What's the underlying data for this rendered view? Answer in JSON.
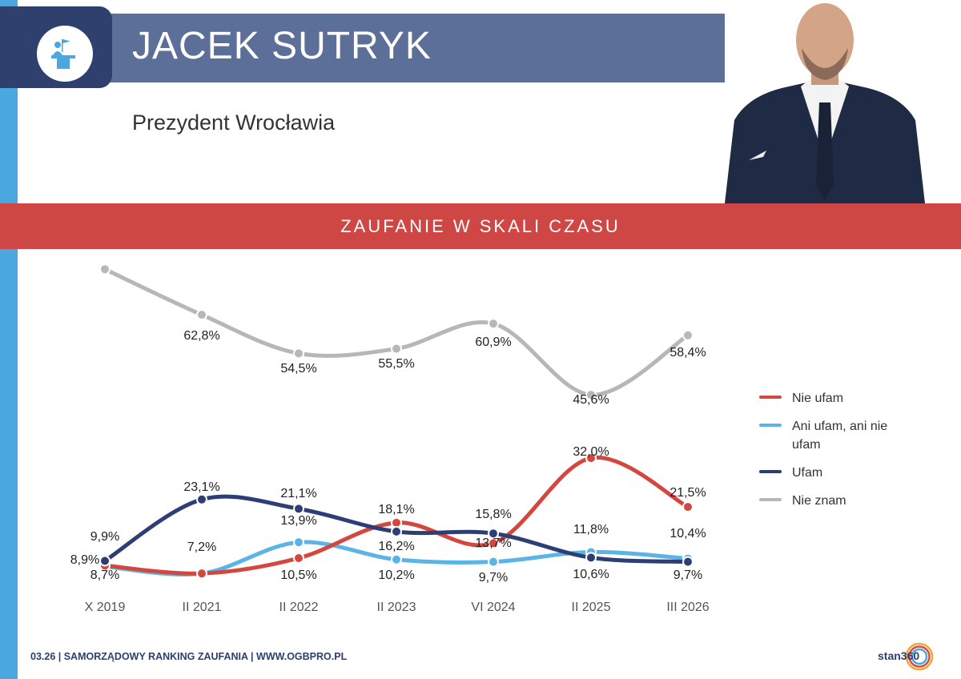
{
  "header": {
    "name": "JACEK SUTRYK",
    "role": "Prezydent Wrocławia",
    "icon": "speaker-podium-icon"
  },
  "section": {
    "title": "ZAUFANIE W SKALI CZASU"
  },
  "footer": {
    "text": "03.26 | SAMORZĄDOWY RANKING ZAUFANIA | WWW.OGBPRO.PL",
    "logo": "stan360"
  },
  "colors": {
    "header_bar": "#5c6f99",
    "icon_box": "#2f3f6e",
    "accent_blue": "#4ba7df",
    "section_red": "#cf4744"
  },
  "chart_data": {
    "type": "line",
    "categories": [
      "X 2019",
      "II 2021",
      "II 2022",
      "II 2023",
      "VI 2024",
      "II 2025",
      "III 2026"
    ],
    "ylim": [
      0,
      70
    ],
    "grid": false,
    "legend": "right",
    "series": [
      {
        "name": "Nie ufam",
        "color": "#d4473f",
        "values": [
          8.9,
          7.2,
          10.5,
          18.1,
          13.7,
          32.0,
          21.5
        ],
        "labels": [
          "8,9%",
          "",
          "10,5%",
          "18,1%",
          "13,7%",
          "32,0%",
          "21,5%"
        ]
      },
      {
        "name": "Ani ufam, ani nie ufam",
        "color": "#5ab4e5",
        "values": [
          8.7,
          7.2,
          13.9,
          10.2,
          9.7,
          11.8,
          10.4
        ],
        "labels": [
          "8,7%",
          "7,2%",
          "13,9%",
          "10,2%",
          "9,7%",
          "11,8%",
          "10,4%"
        ]
      },
      {
        "name": "Ufam",
        "color": "#2c3e73",
        "values": [
          9.9,
          23.1,
          21.1,
          16.2,
          15.8,
          10.6,
          9.7
        ],
        "labels": [
          "9,9%",
          "23,1%",
          "21,1%",
          "16,2%",
          "15,8%",
          "10,6%",
          "9,7%"
        ]
      },
      {
        "name": "Nie znam",
        "color": "#b7b7b7",
        "values": [
          72.6,
          62.8,
          54.5,
          55.5,
          60.9,
          45.6,
          58.4
        ],
        "labels": [
          "",
          "62,8%",
          "54,5%",
          "55,5%",
          "60,9%",
          "45,6%",
          "58,4%"
        ]
      }
    ]
  }
}
